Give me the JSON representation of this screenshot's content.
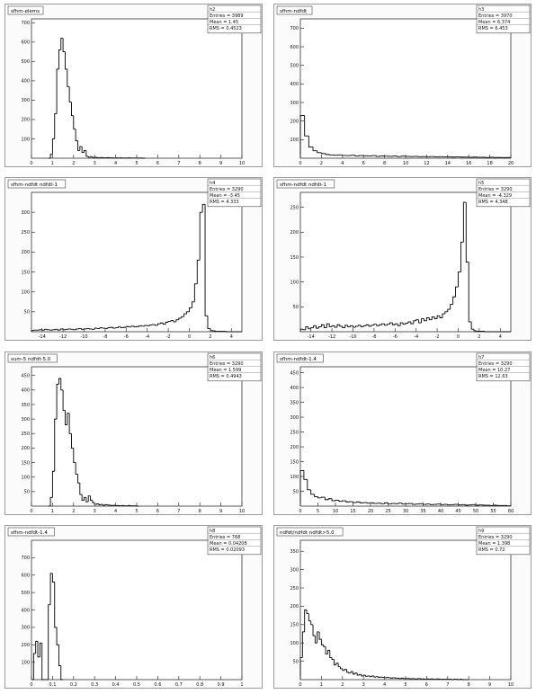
{
  "chart_data": [
    {
      "type": "bar",
      "title": "sfhm-elems",
      "stats": {
        "header": "h2",
        "rows": [
          "Entries = 3989",
          "Mean = 1.45",
          "RMS = 0.4523"
        ]
      },
      "xlim": [
        0,
        10
      ],
      "ylim": [
        0,
        720
      ],
      "xticks": [
        0,
        1,
        2,
        3,
        4,
        5,
        6,
        7,
        8,
        9,
        10
      ],
      "xtick_labels": [
        "0",
        "1",
        "2",
        "3",
        "4",
        "5",
        "6",
        "7",
        "8",
        "9",
        "10"
      ],
      "yticks": [
        100,
        200,
        300,
        400,
        500,
        600,
        700
      ],
      "ytick_labels": [
        "100",
        "200",
        "300",
        "400",
        "500",
        "600",
        "700"
      ],
      "bins": {
        "start": 0.8,
        "width": 0.1,
        "values": [
          0,
          20,
          100,
          230,
          460,
          560,
          620,
          550,
          460,
          370,
          290,
          220,
          150,
          90,
          40,
          60,
          30,
          40,
          10,
          5,
          8,
          3,
          5,
          3,
          2,
          4,
          2,
          2,
          3,
          2,
          2,
          1,
          2,
          1,
          2,
          1,
          1,
          1,
          2,
          1,
          1,
          1,
          1,
          1,
          1,
          0
        ]
      }
    },
    {
      "type": "bar",
      "title": "sfhm-ndfdt",
      "stats": {
        "header": "h3",
        "rows": [
          "Entries = 3970",
          "Mean = 6.374",
          "RMS = 6.453"
        ]
      },
      "xlim": [
        0,
        20
      ],
      "ylim": [
        0,
        750
      ],
      "xticks": [
        0,
        2,
        4,
        6,
        8,
        10,
        12,
        14,
        16,
        18,
        20
      ],
      "xtick_labels": [
        "0",
        "2",
        "4",
        "6",
        "8",
        "10",
        "12",
        "14",
        "16",
        "18",
        "20"
      ],
      "yticks": [
        100,
        200,
        300,
        400,
        500,
        600,
        700
      ],
      "ytick_labels": [
        "100",
        "200",
        "300",
        "400",
        "500",
        "600",
        "700"
      ],
      "bins": {
        "start": 0.0,
        "width": 0.4,
        "values": [
          230,
          120,
          60,
          40,
          30,
          25,
          20,
          18,
          16,
          18,
          15,
          14,
          16,
          12,
          14,
          13,
          12,
          14,
          10,
          12,
          11,
          10,
          12,
          9,
          11,
          10,
          9,
          10,
          8,
          9,
          8,
          9,
          7,
          8,
          7,
          7,
          6,
          7,
          6,
          6,
          5,
          6,
          5,
          5,
          4,
          5,
          4,
          4,
          3,
          4
        ]
      }
    },
    {
      "type": "bar",
      "title": "sfhm-ndfdt ndfdt-1",
      "stats": {
        "header": "h4",
        "rows": [
          "Entries = 3290",
          "Mean = -3.45",
          "RMS = 4.333"
        ]
      },
      "xlim": [
        -15,
        5
      ],
      "ylim": [
        0,
        350
      ],
      "xticks": [
        -14,
        -12,
        -10,
        -8,
        -6,
        -4,
        -2,
        0,
        2,
        4
      ],
      "xtick_labels": [
        "-14",
        "-12",
        "-10",
        "-8",
        "-6",
        "-4",
        "-2",
        "0",
        "2",
        "4"
      ],
      "yticks": [
        50,
        100,
        150,
        200,
        250,
        300
      ],
      "ytick_labels": [
        "50",
        "100",
        "150",
        "200",
        "250",
        "300"
      ],
      "bins": {
        "start": -15,
        "width": 0.25,
        "values": [
          3,
          4,
          4,
          5,
          4,
          6,
          5,
          4,
          5,
          6,
          4,
          7,
          5,
          6,
          7,
          6,
          5,
          7,
          8,
          6,
          7,
          8,
          7,
          6,
          9,
          8,
          10,
          9,
          8,
          10,
          11,
          9,
          10,
          12,
          10,
          11,
          13,
          12,
          14,
          12,
          13,
          15,
          14,
          16,
          15,
          17,
          18,
          16,
          20,
          22,
          19,
          24,
          26,
          28,
          25,
          30,
          34,
          38,
          45,
          50,
          60,
          75,
          120,
          180,
          300,
          320,
          40,
          8,
          3,
          2,
          1,
          1,
          1,
          1,
          0,
          0,
          0,
          0,
          0,
          0
        ]
      }
    },
    {
      "type": "bar",
      "title": "sfhm-ndfdt ndfdt-1",
      "stats": {
        "header": "h5",
        "rows": [
          "Entries = 3290",
          "Mean = -4.329",
          "RMS = 4.348"
        ]
      },
      "xlim": [
        -15,
        5
      ],
      "ylim": [
        0,
        280
      ],
      "xticks": [
        -14,
        -12,
        -10,
        -8,
        -6,
        -4,
        -2,
        0,
        2,
        4
      ],
      "xtick_labels": [
        "-14",
        "-12",
        "-10",
        "-8",
        "-6",
        "-4",
        "-2",
        "0",
        "2",
        "4"
      ],
      "yticks": [
        50,
        100,
        150,
        200,
        250
      ],
      "ytick_labels": [
        "50",
        "100",
        "150",
        "200",
        "250"
      ],
      "bins": {
        "start": -15,
        "width": 0.25,
        "values": [
          5,
          4,
          10,
          6,
          8,
          12,
          7,
          10,
          14,
          8,
          16,
          10,
          12,
          9,
          14,
          11,
          8,
          13,
          10,
          12,
          9,
          11,
          13,
          10,
          12,
          14,
          11,
          13,
          15,
          12,
          14,
          16,
          13,
          15,
          18,
          14,
          16,
          12,
          18,
          15,
          17,
          20,
          16,
          22,
          24,
          18,
          26,
          22,
          28,
          24,
          30,
          26,
          32,
          28,
          36,
          40,
          45,
          55,
          70,
          90,
          120,
          180,
          260,
          140,
          20,
          5,
          2,
          1,
          1,
          1,
          0,
          0,
          0,
          0,
          0,
          0,
          0,
          0,
          0,
          0
        ]
      }
    },
    {
      "type": "bar",
      "title": "sum-5 ndfdt-5.0",
      "stats": {
        "header": "h6",
        "rows": [
          "Entries = 3290",
          "Mean = 1.599",
          "RMS = 0.4943"
        ]
      },
      "xlim": [
        0,
        10
      ],
      "ylim": [
        0,
        480
      ],
      "xticks": [
        0,
        1,
        2,
        3,
        4,
        5,
        6,
        7,
        8,
        9,
        10
      ],
      "xtick_labels": [
        "0",
        "1",
        "2",
        "3",
        "4",
        "5",
        "6",
        "7",
        "8",
        "9",
        "10"
      ],
      "yticks": [
        50,
        100,
        150,
        200,
        250,
        300,
        350,
        400,
        450
      ],
      "ytick_labels": [
        "50",
        "100",
        "150",
        "200",
        "250",
        "300",
        "350",
        "400",
        "450"
      ],
      "bins": {
        "start": 0.8,
        "width": 0.1,
        "values": [
          0,
          30,
          120,
          300,
          420,
          440,
          400,
          330,
          280,
          320,
          250,
          200,
          150,
          110,
          80,
          40,
          20,
          30,
          15,
          35,
          20,
          12,
          6,
          8,
          4,
          6,
          3,
          5,
          4,
          3,
          2,
          3,
          2,
          2,
          1,
          2,
          1,
          1,
          2,
          1,
          1,
          1,
          0
        ]
      }
    },
    {
      "type": "bar",
      "title": "sfhm-ndfdt-1.4",
      "stats": {
        "header": "h7",
        "rows": [
          "Entries = 3290",
          "Mean = 10.27",
          "RMS = 12.63"
        ]
      },
      "xlim": [
        0,
        60
      ],
      "ylim": [
        0,
        470
      ],
      "xticks": [
        0,
        5,
        10,
        15,
        20,
        25,
        30,
        35,
        40,
        45,
        50,
        55,
        60
      ],
      "xtick_labels": [
        "0",
        "5",
        "10",
        "15",
        "20",
        "25",
        "30",
        "35",
        "40",
        "45",
        "50",
        "55",
        "60"
      ],
      "yticks": [
        50,
        100,
        150,
        200,
        250,
        300,
        350,
        400,
        450
      ],
      "ytick_labels": [
        "50",
        "100",
        "150",
        "200",
        "250",
        "300",
        "350",
        "400",
        "450"
      ],
      "bins": {
        "start": 0.0,
        "width": 1.0,
        "values": [
          120,
          90,
          55,
          40,
          32,
          28,
          30,
          22,
          25,
          18,
          20,
          16,
          18,
          14,
          15,
          12,
          14,
          11,
          12,
          10,
          11,
          9,
          10,
          8,
          11,
          7,
          9,
          8,
          10,
          7,
          8,
          9,
          6,
          7,
          8,
          6,
          7,
          5,
          6,
          7,
          5,
          6,
          4,
          5,
          6,
          4,
          5,
          3,
          4,
          5,
          3,
          4,
          3,
          3,
          2,
          3,
          2,
          2,
          2,
          1
        ]
      }
    },
    {
      "type": "bar",
      "title": "sfhm-ndfdt-1.4",
      "stats": {
        "header": "h8",
        "rows": [
          "Entries = 768",
          "Mean = 0.04208",
          "RMS = 0.02093"
        ]
      },
      "xlim": [
        0,
        1
      ],
      "ylim": [
        0,
        800
      ],
      "xticks": [
        0,
        0.1,
        0.2,
        0.3,
        0.4,
        0.5,
        0.6,
        0.7,
        0.8,
        0.9,
        1
      ],
      "xtick_labels": [
        "0",
        "0.1",
        "0.2",
        "0.3",
        "0.4",
        "0.5",
        "0.6",
        "0.7",
        "0.8",
        "0.9",
        "1"
      ],
      "yticks": [
        100,
        200,
        300,
        400,
        500,
        600,
        700
      ],
      "ytick_labels": [
        "100",
        "200",
        "300",
        "400",
        "500",
        "600",
        "700"
      ],
      "bins": {
        "start": 0.0,
        "width": 0.01,
        "values": [
          0,
          150,
          220,
          130,
          210,
          0,
          0,
          0,
          430,
          610,
          560,
          300,
          200,
          80,
          0
        ]
      }
    },
    {
      "type": "bar",
      "title": "ndfdt/ndfdt ndfdt>5.0",
      "stats": {
        "header": "h9",
        "rows": [
          "Entries = 3290",
          "Mean = 1.398",
          "RMS = 0.72"
        ]
      },
      "xlim": [
        0,
        10
      ],
      "ylim": [
        0,
        380
      ],
      "xticks": [
        0,
        1,
        2,
        3,
        4,
        5,
        6,
        7,
        8,
        9,
        10
      ],
      "xtick_labels": [
        "0",
        "1",
        "2",
        "3",
        "4",
        "5",
        "6",
        "7",
        "8",
        "9",
        "10"
      ],
      "yticks": [
        50,
        100,
        150,
        200,
        250,
        300,
        350
      ],
      "ytick_labels": [
        "50",
        "100",
        "150",
        "200",
        "250",
        "300",
        "350"
      ],
      "bins": {
        "start": 0.0,
        "width": 0.1,
        "values": [
          60,
          130,
          190,
          180,
          160,
          150,
          120,
          100,
          130,
          110,
          95,
          90,
          70,
          80,
          60,
          55,
          40,
          45,
          35,
          30,
          25,
          28,
          20,
          18,
          22,
          15,
          18,
          12,
          14,
          10,
          12,
          9,
          10,
          8,
          10,
          7,
          8,
          6,
          7,
          6,
          5,
          6,
          5,
          4,
          5,
          4,
          4,
          3,
          4,
          3,
          3,
          3,
          2,
          3,
          2,
          2,
          3,
          2,
          2,
          1,
          2,
          1,
          2,
          1,
          1,
          2,
          1,
          1,
          1,
          1,
          1,
          1,
          0,
          1,
          1,
          0,
          1,
          0,
          0,
          0
        ]
      }
    }
  ]
}
